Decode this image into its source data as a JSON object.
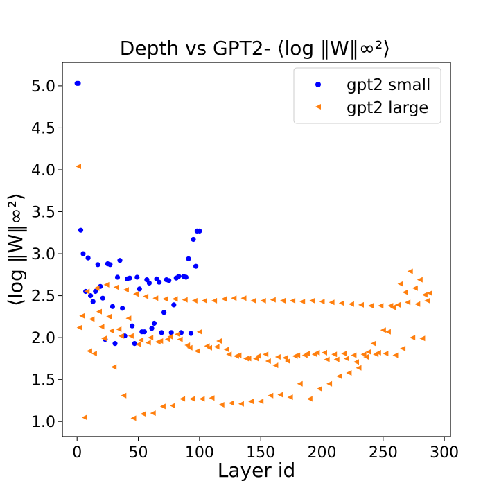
{
  "chart_data": {
    "type": "scatter",
    "title": "Depth vs GPT2- ⟨log ‖W‖∞²⟩",
    "xlabel": "Layer id",
    "ylabel": "⟨log ‖W‖∞²⟩",
    "xlim": [
      -12,
      305
    ],
    "ylim": [
      0.82,
      5.28
    ],
    "xticks": [
      0,
      50,
      100,
      150,
      200,
      250,
      300
    ],
    "yticks": [
      1.0,
      1.5,
      2.0,
      2.5,
      3.0,
      3.5,
      4.0,
      4.5,
      5.0
    ],
    "grid": false,
    "legend": "top-right",
    "series": [
      {
        "name": "gpt2 small",
        "color": "#0000ff",
        "marker": "circle",
        "points": [
          [
            0,
            5.03
          ],
          [
            1,
            5.03
          ],
          [
            3,
            3.28
          ],
          [
            5,
            3.0
          ],
          [
            7,
            2.55
          ],
          [
            9,
            2.95
          ],
          [
            11,
            2.5
          ],
          [
            13,
            2.43
          ],
          [
            15,
            2.55
          ],
          [
            17,
            2.87
          ],
          [
            19,
            2.61
          ],
          [
            21,
            2.47
          ],
          [
            23,
            1.98
          ],
          [
            25,
            2.88
          ],
          [
            27,
            2.87
          ],
          [
            29,
            2.37
          ],
          [
            31,
            1.93
          ],
          [
            33,
            2.72
          ],
          [
            35,
            2.92
          ],
          [
            37,
            2.35
          ],
          [
            39,
            2.02
          ],
          [
            41,
            2.7
          ],
          [
            43,
            2.71
          ],
          [
            45,
            2.14
          ],
          [
            47,
            1.93
          ],
          [
            49,
            2.72
          ],
          [
            51,
            2.58
          ],
          [
            53,
            2.07
          ],
          [
            55,
            2.07
          ],
          [
            57,
            2.69
          ],
          [
            59,
            2.65
          ],
          [
            61,
            2.11
          ],
          [
            63,
            2.17
          ],
          [
            65,
            2.7
          ],
          [
            67,
            2.66
          ],
          [
            69,
            2.06
          ],
          [
            71,
            2.3
          ],
          [
            73,
            2.69
          ],
          [
            75,
            2.68
          ],
          [
            77,
            2.06
          ],
          [
            79,
            2.39
          ],
          [
            81,
            2.71
          ],
          [
            83,
            2.73
          ],
          [
            85,
            2.06
          ],
          [
            87,
            2.73
          ],
          [
            89,
            2.72
          ],
          [
            91,
            2.94
          ],
          [
            93,
            2.05
          ],
          [
            95,
            3.17
          ],
          [
            97,
            2.85
          ],
          [
            98,
            3.27
          ],
          [
            100,
            3.27
          ]
        ]
      },
      {
        "name": "gpt2 large",
        "color": "#ff7f0e",
        "marker": "triangle-left",
        "points": [
          [
            1,
            4.04
          ],
          [
            2,
            2.12
          ],
          [
            4,
            2.26
          ],
          [
            6,
            1.05
          ],
          [
            8,
            2.55
          ],
          [
            10,
            1.84
          ],
          [
            12,
            2.22
          ],
          [
            14,
            1.81
          ],
          [
            16,
            2.59
          ],
          [
            18,
            2.31
          ],
          [
            20,
            2.13
          ],
          [
            22,
            1.99
          ],
          [
            24,
            2.63
          ],
          [
            26,
            2.25
          ],
          [
            28,
            2.08
          ],
          [
            30,
            1.65
          ],
          [
            32,
            2.6
          ],
          [
            34,
            2.1
          ],
          [
            36,
            2.02
          ],
          [
            38,
            1.31
          ],
          [
            40,
            2.57
          ],
          [
            42,
            2.23
          ],
          [
            44,
            2.02
          ],
          [
            46,
            1.04
          ],
          [
            48,
            2.52
          ],
          [
            50,
            1.92
          ],
          [
            52,
            1.97
          ],
          [
            54,
            1.09
          ],
          [
            56,
            2.49
          ],
          [
            58,
            1.94
          ],
          [
            60,
            2.0
          ],
          [
            62,
            1.1
          ],
          [
            64,
            2.47
          ],
          [
            66,
            1.95
          ],
          [
            68,
            1.96
          ],
          [
            70,
            1.18
          ],
          [
            72,
            2.46
          ],
          [
            74,
            1.98
          ],
          [
            76,
            2.01
          ],
          [
            78,
            1.19
          ],
          [
            80,
            2.46
          ],
          [
            82,
            2.04
          ],
          [
            84,
            1.98
          ],
          [
            86,
            1.27
          ],
          [
            88,
            2.45
          ],
          [
            90,
            1.91
          ],
          [
            92,
            1.88
          ],
          [
            94,
            1.27
          ],
          [
            96,
            2.44
          ],
          [
            98,
            1.84
          ],
          [
            100,
            2.07
          ],
          [
            102,
            1.27
          ],
          [
            104,
            2.44
          ],
          [
            106,
            1.9
          ],
          [
            108,
            1.88
          ],
          [
            110,
            1.28
          ],
          [
            112,
            2.44
          ],
          [
            114,
            1.89
          ],
          [
            116,
            1.96
          ],
          [
            118,
            1.2
          ],
          [
            120,
            2.46
          ],
          [
            122,
            1.86
          ],
          [
            124,
            1.8
          ],
          [
            126,
            1.22
          ],
          [
            128,
            2.47
          ],
          [
            130,
            1.78
          ],
          [
            132,
            1.79
          ],
          [
            134,
            1.21
          ],
          [
            136,
            2.47
          ],
          [
            138,
            1.75
          ],
          [
            140,
            1.75
          ],
          [
            142,
            1.24
          ],
          [
            144,
            2.44
          ],
          [
            146,
            1.75
          ],
          [
            148,
            1.78
          ],
          [
            150,
            1.24
          ],
          [
            152,
            2.44
          ],
          [
            154,
            1.8
          ],
          [
            156,
            1.72
          ],
          [
            158,
            1.31
          ],
          [
            160,
            2.45
          ],
          [
            162,
            1.67
          ],
          [
            164,
            1.77
          ],
          [
            166,
            1.32
          ],
          [
            168,
            2.44
          ],
          [
            170,
            1.76
          ],
          [
            172,
            1.72
          ],
          [
            174,
            1.29
          ],
          [
            176,
            2.44
          ],
          [
            178,
            1.78
          ],
          [
            180,
            1.79
          ],
          [
            182,
            1.45
          ],
          [
            184,
            2.43
          ],
          [
            186,
            1.79
          ],
          [
            188,
            1.81
          ],
          [
            190,
            1.27
          ],
          [
            192,
            2.44
          ],
          [
            194,
            1.8
          ],
          [
            196,
            1.82
          ],
          [
            198,
            1.39
          ],
          [
            200,
            2.43
          ],
          [
            202,
            1.82
          ],
          [
            204,
            1.74
          ],
          [
            206,
            1.45
          ],
          [
            208,
            2.42
          ],
          [
            210,
            1.8
          ],
          [
            212,
            1.74
          ],
          [
            214,
            1.54
          ],
          [
            216,
            2.41
          ],
          [
            218,
            1.81
          ],
          [
            220,
            1.75
          ],
          [
            222,
            1.58
          ],
          [
            224,
            2.4
          ],
          [
            226,
            1.79
          ],
          [
            228,
            1.71
          ],
          [
            230,
            1.64
          ],
          [
            232,
            2.39
          ],
          [
            234,
            1.8
          ],
          [
            236,
            1.77
          ],
          [
            238,
            1.83
          ],
          [
            240,
            2.38
          ],
          [
            242,
            1.93
          ],
          [
            244,
            1.8
          ],
          [
            246,
            1.82
          ],
          [
            248,
            2.38
          ],
          [
            250,
            2.09
          ],
          [
            252,
            1.81
          ],
          [
            254,
            2.07
          ],
          [
            256,
            2.38
          ],
          [
            258,
            2.36
          ],
          [
            260,
            1.79
          ],
          [
            262,
            2.39
          ],
          [
            264,
            2.64
          ],
          [
            266,
            1.87
          ],
          [
            268,
            2.54
          ],
          [
            270,
            2.42
          ],
          [
            272,
            2.79
          ],
          [
            274,
            2.0
          ],
          [
            276,
            2.59
          ],
          [
            278,
            2.4
          ],
          [
            280,
            2.69
          ],
          [
            282,
            1.99
          ],
          [
            284,
            2.51
          ],
          [
            286,
            2.44
          ],
          [
            288,
            2.53
          ]
        ]
      }
    ]
  }
}
